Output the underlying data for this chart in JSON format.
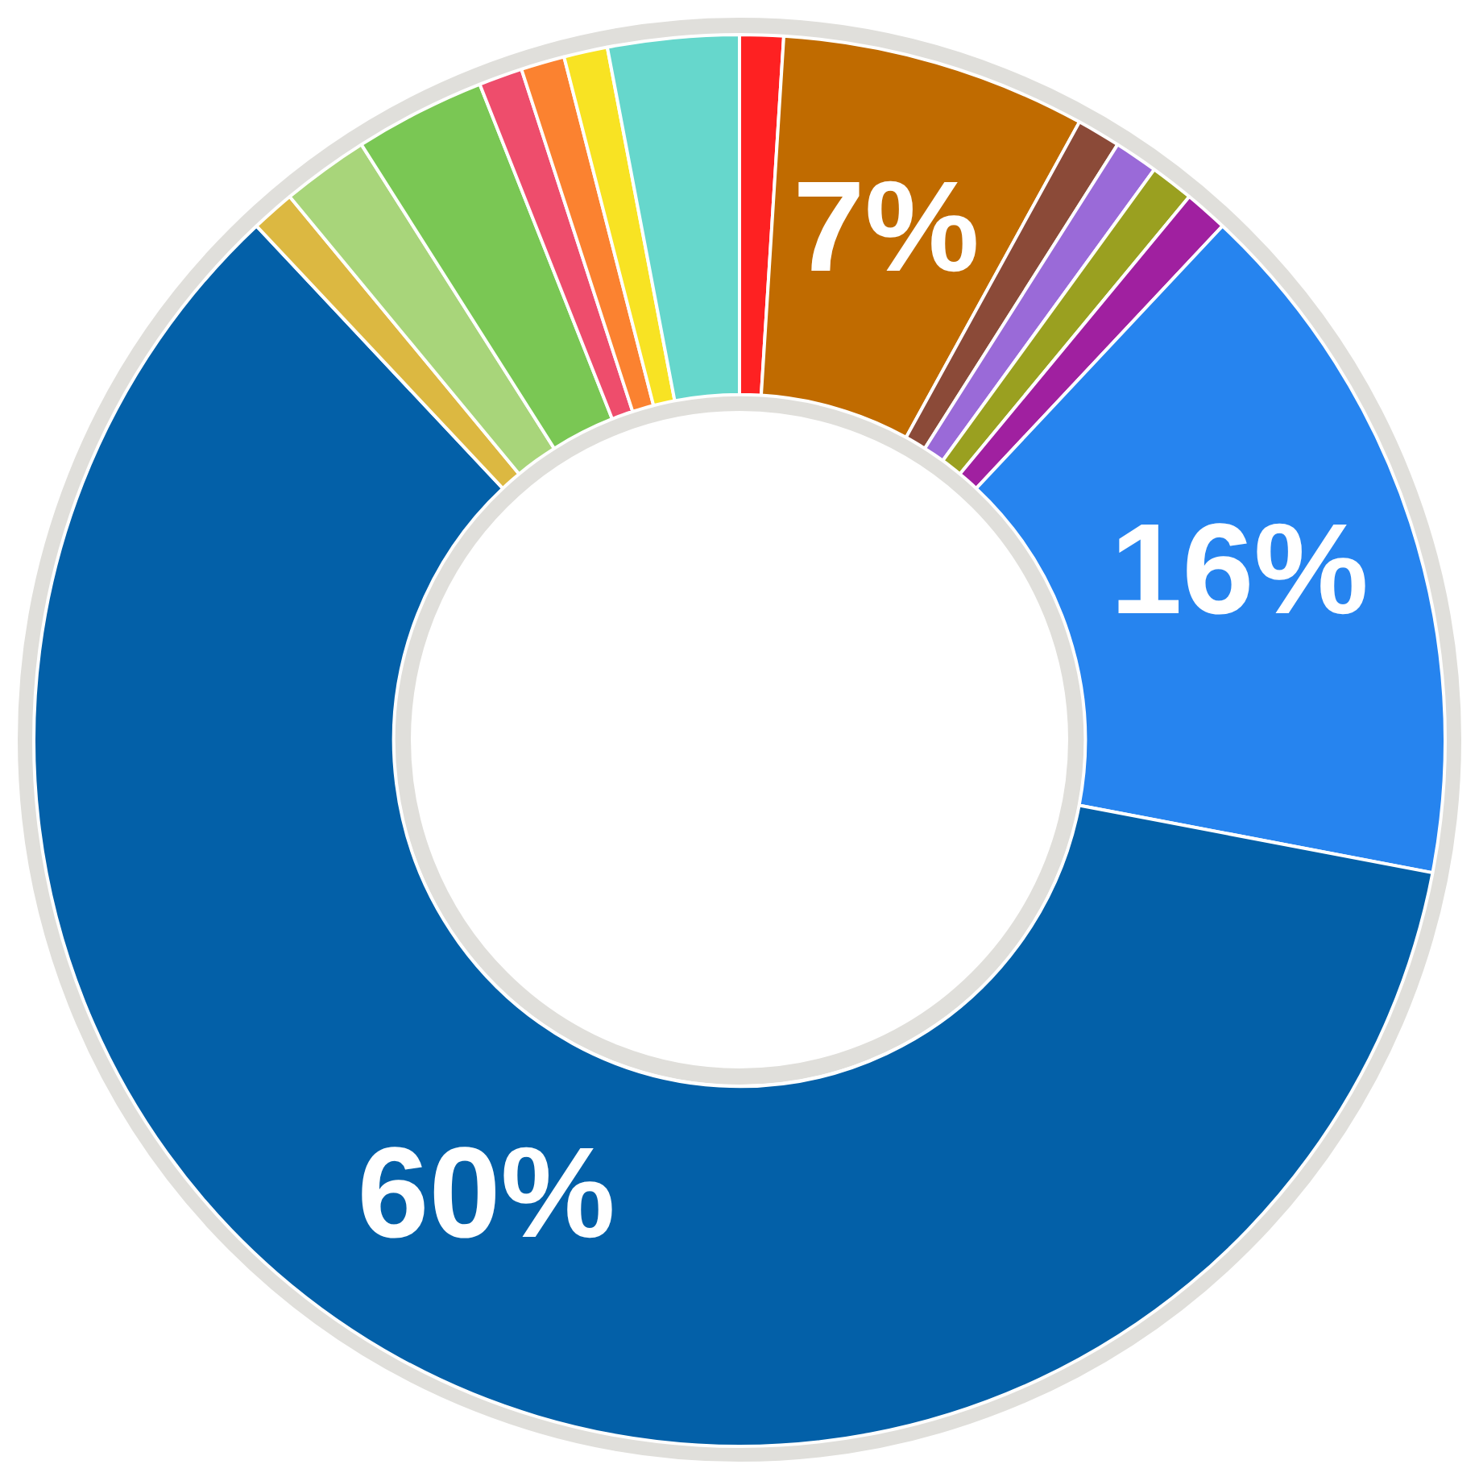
{
  "chart_data": {
    "type": "donut",
    "categories": [
      null,
      null,
      null,
      null,
      null,
      null,
      null,
      null,
      null,
      null,
      null,
      null,
      null,
      null,
      null
    ],
    "values": [
      1,
      7,
      1,
      1,
      1,
      1,
      16,
      60,
      1,
      2,
      3,
      1,
      1,
      1,
      3
    ],
    "colors": [
      "#fe2122",
      "#c06b00",
      "#8b4a38",
      "#9a6ad8",
      "#9aa020",
      "#a020a0",
      "#2684ef",
      "#0360a8",
      "#dcb841",
      "#a8d57a",
      "#7ac754",
      "#ee4d6c",
      "#fb8230",
      "#f8e323",
      "#66d7cc"
    ],
    "value_labels": [
      null,
      "7%",
      null,
      null,
      null,
      null,
      "16%",
      "60%",
      null,
      null,
      null,
      null,
      null,
      null,
      null
    ],
    "legend": false
  }
}
